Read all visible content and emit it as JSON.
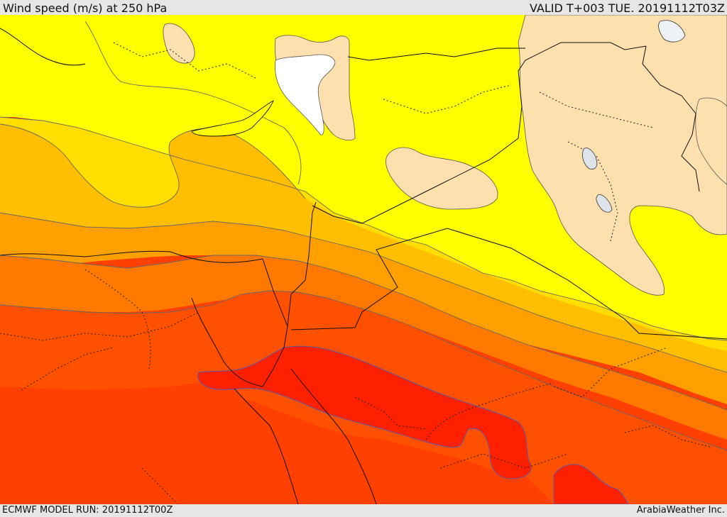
{
  "header": {
    "title": "Wind speed (m/s) at 250 hPa",
    "valid": "VALID T+003 TUE. 20191112T03Z"
  },
  "footer": {
    "model_run": "ECMWF MODEL RUN: 20191112T00Z",
    "credit": "ArabiaWeather Inc."
  },
  "map": {
    "variable": "wind speed",
    "level": "250 hPa",
    "units": "m/s",
    "colors": {
      "white": "#ffffff",
      "tan": "#fde0ad",
      "yellow": "#ffff00",
      "yellow_orange": "#ffde00",
      "light_orange": "#ffbe00",
      "orange": "#ffa000",
      "dark_orange": "#ff7800",
      "red_orange": "#ff5000",
      "orange_red": "#ff4000",
      "red": "#ff2000"
    }
  }
}
